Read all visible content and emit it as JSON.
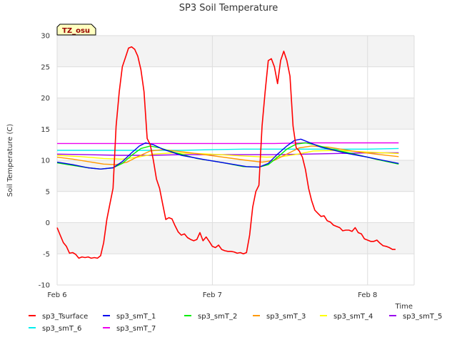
{
  "chart_data": {
    "type": "line",
    "title": "SP3 Soil Temperature",
    "xlabel": "Time",
    "ylabel": "Soil Temperature (C)",
    "station_badge": "TZ_osu",
    "ylim": [
      -10,
      30
    ],
    "yticks": [
      -10,
      -5,
      0,
      5,
      10,
      15,
      20,
      25,
      30
    ],
    "xlim": [
      0,
      2.3
    ],
    "xticks": [
      {
        "value": 0,
        "label": "Feb 6"
      },
      {
        "value": 1,
        "label": "Feb 7"
      },
      {
        "value": 2,
        "label": "Feb 8"
      }
    ],
    "x_unit": "days since Feb 6",
    "grid": true,
    "legend": "bottom",
    "series": [
      {
        "name": "sp3_Tsurface",
        "color": "#ff0000",
        "points": [
          [
            0.0,
            -0.8
          ],
          [
            0.02,
            -2.0
          ],
          [
            0.04,
            -3.2
          ],
          [
            0.06,
            -3.8
          ],
          [
            0.08,
            -4.9
          ],
          [
            0.1,
            -4.8
          ],
          [
            0.12,
            -5.1
          ],
          [
            0.14,
            -5.7
          ],
          [
            0.16,
            -5.5
          ],
          [
            0.18,
            -5.6
          ],
          [
            0.2,
            -5.5
          ],
          [
            0.22,
            -5.7
          ],
          [
            0.24,
            -5.6
          ],
          [
            0.26,
            -5.7
          ],
          [
            0.28,
            -5.3
          ],
          [
            0.3,
            -3.2
          ],
          [
            0.32,
            0.5
          ],
          [
            0.34,
            3.0
          ],
          [
            0.36,
            5.5
          ],
          [
            0.38,
            15.5
          ],
          [
            0.4,
            21.0
          ],
          [
            0.42,
            25.0
          ],
          [
            0.44,
            26.5
          ],
          [
            0.46,
            28.0
          ],
          [
            0.48,
            28.2
          ],
          [
            0.5,
            27.8
          ],
          [
            0.52,
            26.7
          ],
          [
            0.54,
            24.5
          ],
          [
            0.56,
            21.0
          ],
          [
            0.58,
            13.5
          ],
          [
            0.6,
            12.5
          ],
          [
            0.62,
            10.0
          ],
          [
            0.64,
            7.0
          ],
          [
            0.66,
            5.5
          ],
          [
            0.68,
            3.0
          ],
          [
            0.7,
            0.5
          ],
          [
            0.72,
            0.8
          ],
          [
            0.74,
            0.6
          ],
          [
            0.76,
            -0.5
          ],
          [
            0.78,
            -1.5
          ],
          [
            0.8,
            -2.0
          ],
          [
            0.82,
            -1.8
          ],
          [
            0.84,
            -2.4
          ],
          [
            0.86,
            -2.7
          ],
          [
            0.88,
            -2.9
          ],
          [
            0.9,
            -2.7
          ],
          [
            0.92,
            -1.6
          ],
          [
            0.94,
            -2.9
          ],
          [
            0.96,
            -2.3
          ],
          [
            0.98,
            -3.0
          ],
          [
            1.0,
            -3.8
          ],
          [
            1.02,
            -4.0
          ],
          [
            1.04,
            -3.6
          ],
          [
            1.06,
            -4.3
          ],
          [
            1.08,
            -4.5
          ],
          [
            1.1,
            -4.6
          ],
          [
            1.12,
            -4.6
          ],
          [
            1.14,
            -4.7
          ],
          [
            1.16,
            -4.9
          ],
          [
            1.18,
            -4.8
          ],
          [
            1.2,
            -5.0
          ],
          [
            1.22,
            -4.8
          ],
          [
            1.24,
            -2.0
          ],
          [
            1.26,
            2.5
          ],
          [
            1.28,
            5.0
          ],
          [
            1.3,
            6.0
          ],
          [
            1.32,
            15.5
          ],
          [
            1.34,
            21.0
          ],
          [
            1.36,
            26.0
          ],
          [
            1.38,
            26.3
          ],
          [
            1.4,
            25.0
          ],
          [
            1.42,
            22.3
          ],
          [
            1.44,
            26.0
          ],
          [
            1.46,
            27.5
          ],
          [
            1.48,
            26.0
          ],
          [
            1.5,
            23.5
          ],
          [
            1.52,
            15.5
          ],
          [
            1.54,
            12.0
          ],
          [
            1.56,
            11.5
          ],
          [
            1.58,
            10.5
          ],
          [
            1.6,
            8.5
          ],
          [
            1.62,
            5.5
          ],
          [
            1.64,
            3.5
          ],
          [
            1.66,
            2.0
          ],
          [
            1.68,
            1.5
          ],
          [
            1.7,
            1.0
          ],
          [
            1.72,
            1.1
          ],
          [
            1.74,
            0.3
          ],
          [
            1.76,
            0.1
          ],
          [
            1.78,
            -0.4
          ],
          [
            1.8,
            -0.6
          ],
          [
            1.82,
            -0.8
          ],
          [
            1.84,
            -1.3
          ],
          [
            1.86,
            -1.2
          ],
          [
            1.88,
            -1.2
          ],
          [
            1.9,
            -1.4
          ],
          [
            1.92,
            -0.8
          ],
          [
            1.94,
            -1.6
          ],
          [
            1.96,
            -1.8
          ],
          [
            1.98,
            -2.6
          ],
          [
            2.0,
            -2.8
          ],
          [
            2.02,
            -3.0
          ],
          [
            2.04,
            -3.0
          ],
          [
            2.06,
            -2.8
          ],
          [
            2.08,
            -3.3
          ],
          [
            2.1,
            -3.7
          ],
          [
            2.12,
            -3.8
          ],
          [
            2.14,
            -4.0
          ],
          [
            2.16,
            -4.3
          ],
          [
            2.18,
            -4.3
          ]
        ]
      },
      {
        "name": "sp3_smT_1",
        "color": "#0000ee",
        "points": [
          [
            0.0,
            9.7
          ],
          [
            0.1,
            9.3
          ],
          [
            0.2,
            8.8
          ],
          [
            0.28,
            8.6
          ],
          [
            0.36,
            8.8
          ],
          [
            0.42,
            9.8
          ],
          [
            0.48,
            11.2
          ],
          [
            0.53,
            12.3
          ],
          [
            0.57,
            12.8
          ],
          [
            0.62,
            12.5
          ],
          [
            0.68,
            11.8
          ],
          [
            0.8,
            10.8
          ],
          [
            0.95,
            10.1
          ],
          [
            1.1,
            9.5
          ],
          [
            1.22,
            9.0
          ],
          [
            1.3,
            8.9
          ],
          [
            1.36,
            9.5
          ],
          [
            1.42,
            11.0
          ],
          [
            1.48,
            12.3
          ],
          [
            1.53,
            13.2
          ],
          [
            1.57,
            13.4
          ],
          [
            1.62,
            12.9
          ],
          [
            1.7,
            12.1
          ],
          [
            1.85,
            11.2
          ],
          [
            2.0,
            10.5
          ],
          [
            2.1,
            10.0
          ],
          [
            2.2,
            9.5
          ]
        ]
      },
      {
        "name": "sp3_smT_2",
        "color": "#00ee00",
        "points": [
          [
            0.0,
            9.6
          ],
          [
            0.1,
            9.2
          ],
          [
            0.2,
            8.8
          ],
          [
            0.28,
            8.6
          ],
          [
            0.36,
            8.8
          ],
          [
            0.42,
            9.5
          ],
          [
            0.48,
            10.8
          ],
          [
            0.54,
            11.9
          ],
          [
            0.6,
            12.3
          ],
          [
            0.66,
            12.0
          ],
          [
            0.75,
            11.3
          ],
          [
            0.9,
            10.3
          ],
          [
            1.05,
            9.7
          ],
          [
            1.2,
            9.0
          ],
          [
            1.3,
            8.9
          ],
          [
            1.36,
            9.3
          ],
          [
            1.42,
            10.5
          ],
          [
            1.48,
            11.8
          ],
          [
            1.54,
            12.6
          ],
          [
            1.6,
            12.8
          ],
          [
            1.66,
            12.5
          ],
          [
            1.75,
            11.9
          ],
          [
            1.9,
            11.1
          ],
          [
            2.05,
            10.2
          ],
          [
            2.2,
            9.4
          ]
        ]
      },
      {
        "name": "sp3_smT_3",
        "color": "#ff9900",
        "points": [
          [
            0.0,
            10.5
          ],
          [
            0.1,
            10.2
          ],
          [
            0.2,
            9.8
          ],
          [
            0.3,
            9.4
          ],
          [
            0.38,
            9.3
          ],
          [
            0.45,
            9.7
          ],
          [
            0.52,
            10.6
          ],
          [
            0.6,
            11.5
          ],
          [
            0.68,
            11.7
          ],
          [
            0.8,
            11.4
          ],
          [
            0.95,
            10.9
          ],
          [
            1.1,
            10.4
          ],
          [
            1.22,
            10.0
          ],
          [
            1.32,
            9.7
          ],
          [
            1.4,
            10.0
          ],
          [
            1.48,
            11.0
          ],
          [
            1.56,
            12.0
          ],
          [
            1.64,
            12.3
          ],
          [
            1.75,
            12.1
          ],
          [
            1.9,
            11.5
          ],
          [
            2.05,
            11.0
          ],
          [
            2.2,
            10.6
          ]
        ]
      },
      {
        "name": "sp3_smT_4",
        "color": "#ffff00",
        "points": [
          [
            0.0,
            10.8
          ],
          [
            0.15,
            10.6
          ],
          [
            0.3,
            10.3
          ],
          [
            0.42,
            10.2
          ],
          [
            0.52,
            10.5
          ],
          [
            0.62,
            11.0
          ],
          [
            0.75,
            11.2
          ],
          [
            0.9,
            11.1
          ],
          [
            1.05,
            10.9
          ],
          [
            1.2,
            10.7
          ],
          [
            1.35,
            10.5
          ],
          [
            1.45,
            10.6
          ],
          [
            1.55,
            11.0
          ],
          [
            1.65,
            11.5
          ],
          [
            1.8,
            11.6
          ],
          [
            1.95,
            11.4
          ],
          [
            2.1,
            11.2
          ],
          [
            2.2,
            11.1
          ]
        ]
      },
      {
        "name": "sp3_smT_5",
        "color": "#9900ee",
        "points": [
          [
            0.0,
            11.0
          ],
          [
            0.2,
            10.9
          ],
          [
            0.4,
            10.8
          ],
          [
            0.6,
            10.8
          ],
          [
            0.8,
            10.9
          ],
          [
            1.0,
            10.9
          ],
          [
            1.2,
            10.9
          ],
          [
            1.4,
            10.9
          ],
          [
            1.6,
            11.0
          ],
          [
            1.8,
            11.1
          ],
          [
            2.0,
            11.2
          ],
          [
            2.2,
            11.2
          ]
        ]
      },
      {
        "name": "sp3_smT_6",
        "color": "#00eeee",
        "points": [
          [
            0.0,
            11.6
          ],
          [
            0.2,
            11.6
          ],
          [
            0.4,
            11.6
          ],
          [
            0.6,
            11.6
          ],
          [
            0.8,
            11.6
          ],
          [
            1.0,
            11.7
          ],
          [
            1.2,
            11.8
          ],
          [
            1.4,
            11.8
          ],
          [
            1.6,
            11.8
          ],
          [
            1.8,
            11.8
          ],
          [
            2.0,
            11.8
          ],
          [
            2.2,
            11.9
          ]
        ]
      },
      {
        "name": "sp3_smT_7",
        "color": "#ee00ee",
        "points": [
          [
            0.0,
            12.7
          ],
          [
            0.2,
            12.7
          ],
          [
            0.4,
            12.7
          ],
          [
            0.6,
            12.7
          ],
          [
            0.8,
            12.7
          ],
          [
            1.0,
            12.7
          ],
          [
            1.2,
            12.7
          ],
          [
            1.4,
            12.7
          ],
          [
            1.6,
            12.8
          ],
          [
            1.8,
            12.8
          ],
          [
            2.0,
            12.8
          ],
          [
            2.2,
            12.8
          ]
        ]
      }
    ]
  }
}
